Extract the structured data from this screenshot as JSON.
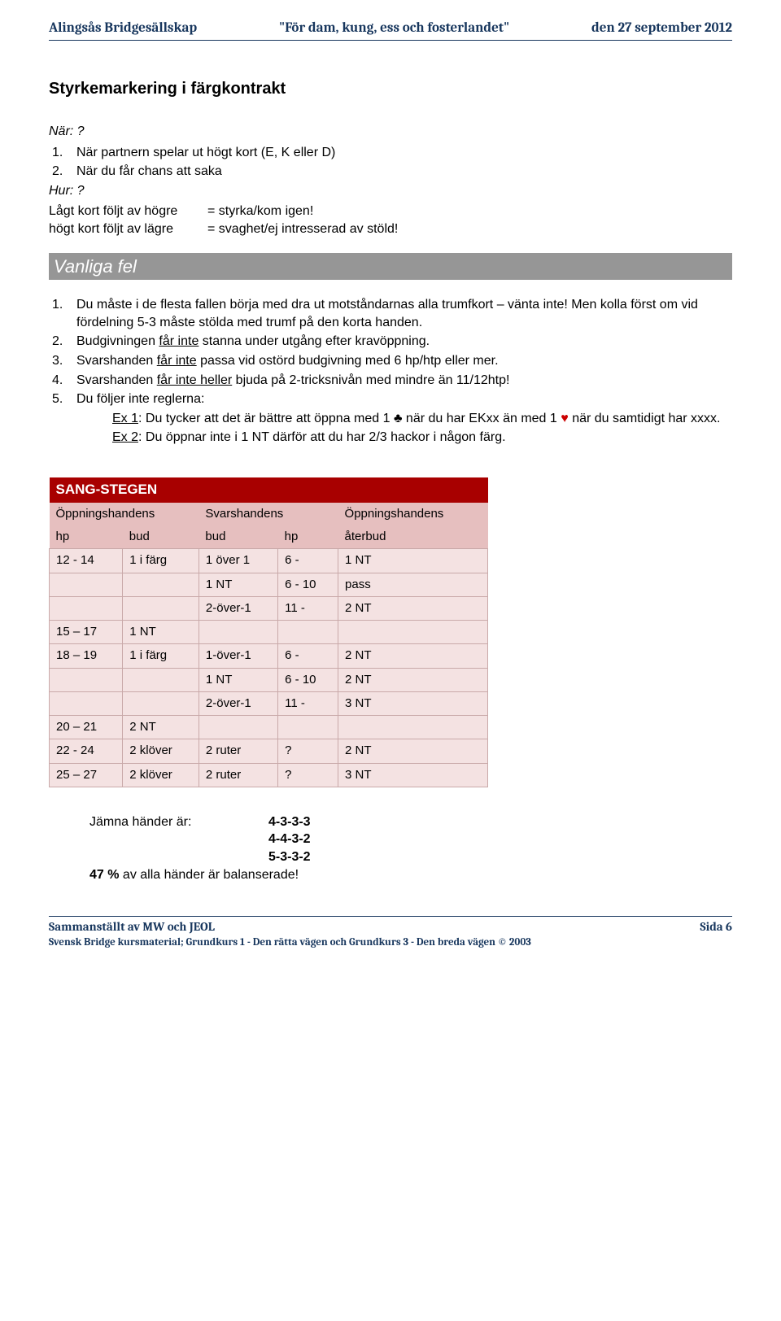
{
  "header": {
    "left": "Alingsås Bridgesällskap",
    "center": "\"För dam, kung, ess och fosterlandet\"",
    "right": "den 27 september 2012"
  },
  "title": "Styrkemarkering i färgkontrakt",
  "nar_label": "När: ?",
  "nar_items": [
    "När partnern spelar ut högt kort (E, K eller D)",
    "När du får chans att saka"
  ],
  "hur_label": "Hur: ?",
  "defs": [
    {
      "lhs": "Lågt kort följt av högre",
      "rhs": "= styrka/kom igen!"
    },
    {
      "lhs": "högt kort följt av lägre",
      "rhs": "= svaghet/ej intresserad av stöld!"
    }
  ],
  "banner": "Vanliga fel",
  "items": {
    "i1": "Du måste i de flesta fallen börja med dra ut motståndarnas alla trumfkort – vänta inte! Men kolla först om vid fördelning 5-3 måste stölda med trumf på den korta handen.",
    "i2_pre": "Budgivningen ",
    "i2_u": "får inte",
    "i2_post": " stanna under utgång efter kravöppning.",
    "i3_pre": "Svarshanden ",
    "i3_u": "får inte",
    "i3_post": " passa vid ostörd budgivning med 6 hp/htp eller mer.",
    "i4_pre": "Svarshanden ",
    "i4_u": "får inte heller",
    "i4_post": " bjuda på 2-tricksnivån med mindre än 11/12htp!",
    "i5": "Du följer inte reglerna:",
    "i5_ex1_lab": "Ex 1",
    "i5_ex1_a": ": Du tycker att det är bättre att öppna med 1 ",
    "i5_ex1_b": " när du har EKxx än med 1 ",
    "i5_ex1_c": " när du samtidigt har xxxx.",
    "i5_ex2_lab": "Ex 2",
    "i5_ex2": ": Du öppnar inte i 1 NT därför att du har 2/3 hackor i någon färg."
  },
  "sang": {
    "title": "SANG-STEGEN",
    "sub1": {
      "a": "Öppningshandens",
      "b": "Svarshandens",
      "c": "Öppningshandens"
    },
    "sub2": {
      "a": "hp",
      "b": "bud",
      "c": "bud",
      "d": "hp",
      "e": "återbud"
    },
    "rows": [
      [
        "12 - 14",
        "1 i färg",
        "1 över 1",
        "6 -",
        "1 NT"
      ],
      [
        "",
        "",
        "1 NT",
        "6 - 10",
        "pass"
      ],
      [
        "",
        "",
        "2-över-1",
        "11 -",
        "2 NT"
      ],
      [
        "15 – 17",
        "1 NT",
        "",
        "",
        ""
      ],
      [
        "18 – 19",
        "1 i färg",
        "1-över-1",
        "6 -",
        "2 NT"
      ],
      [
        "",
        "",
        "1 NT",
        "6 - 10",
        "2 NT"
      ],
      [
        "",
        "",
        "2-över-1",
        "11 -",
        "3 NT"
      ],
      [
        "20 – 21",
        "2 NT",
        "",
        "",
        ""
      ],
      [
        "22 -  24",
        "2 klöver",
        "2 ruter",
        "?",
        "2 NT"
      ],
      [
        "25 – 27",
        "2 klöver",
        "2 ruter",
        "?",
        "3 NT"
      ]
    ],
    "colors": {
      "head_bg": "#a80000",
      "sub_bg": "#e6bfbf",
      "cell_bg": "#f4e2e2",
      "cell_border": "#c9a9a9"
    }
  },
  "footer_info": {
    "line1_label": "Jämna händer är:",
    "vals": [
      "4-3-3-3",
      "4-4-3-2",
      "5-3-3-2"
    ],
    "line2_a": "47 %",
    "line2_b": " av alla händer är balanserade!"
  },
  "bottom": {
    "left1": "Sammanställt av MW och JEOL",
    "right": "Sida 6",
    "left2": "Svensk Bridge kursmaterial; Grundkurs 1 - Den rätta vägen och Grundkurs 3 - Den breda vägen © 2003"
  }
}
